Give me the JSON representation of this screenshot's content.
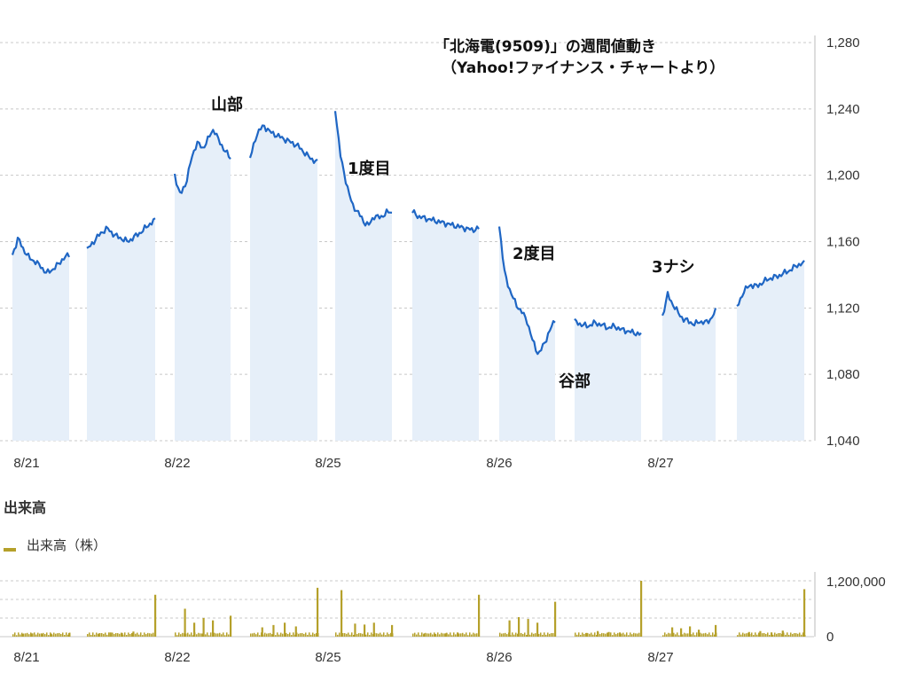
{
  "chart_data": [
    {
      "type": "line",
      "title": "「北海電(9509)」の週間値動き",
      "subtitle": "（Yahoo!ファイナンス・チャートより）",
      "x_labels": [
        "8/21",
        "8/22",
        "8/25",
        "8/26",
        "8/27"
      ],
      "y_ticks": [
        1040,
        1080,
        1120,
        1160,
        1200,
        1240,
        1280
      ],
      "y_tick_labels": [
        "1,040",
        "1,080",
        "1,120",
        "1,160",
        "1,200",
        "1,240",
        "1,280"
      ],
      "ylim": [
        1040,
        1280
      ],
      "grid": true,
      "colors": {
        "line": "#1f66c4",
        "fill": "#e6eff9",
        "grid": "#c8c8c8"
      },
      "sessions": [
        {
          "day": "8/21",
          "part": "am",
          "points": [
            1152,
            1162,
            1155,
            1150,
            1148,
            1145,
            1141,
            1143,
            1146,
            1150,
            1152
          ]
        },
        {
          "day": "8/21",
          "part": "pm",
          "points": [
            1155,
            1160,
            1165,
            1168,
            1164,
            1162,
            1160,
            1163,
            1166,
            1170,
            1173
          ]
        },
        {
          "day": "8/22",
          "part": "am",
          "points": [
            1200,
            1188,
            1195,
            1210,
            1220,
            1216,
            1222,
            1228,
            1220,
            1215,
            1210
          ]
        },
        {
          "day": "8/22",
          "part": "pm",
          "points": [
            1210,
            1225,
            1230,
            1226,
            1224,
            1222,
            1220,
            1218,
            1214,
            1210,
            1208
          ]
        },
        {
          "day": "8/25",
          "part": "am",
          "points": [
            1240,
            1210,
            1195,
            1182,
            1178,
            1172,
            1170,
            1176,
            1174,
            1178,
            1177
          ]
        },
        {
          "day": "8/25",
          "part": "pm",
          "points": [
            1178,
            1175,
            1174,
            1173,
            1172,
            1171,
            1170,
            1169,
            1168,
            1167,
            1168
          ]
        },
        {
          "day": "8/26",
          "part": "am",
          "points": [
            1170,
            1140,
            1130,
            1122,
            1118,
            1112,
            1100,
            1092,
            1098,
            1106,
            1113
          ]
        },
        {
          "day": "8/26",
          "part": "pm",
          "points": [
            1112,
            1110,
            1109,
            1111,
            1110,
            1108,
            1109,
            1107,
            1106,
            1105,
            1104
          ]
        },
        {
          "day": "8/27",
          "part": "am",
          "points": [
            1115,
            1128,
            1122,
            1117,
            1113,
            1112,
            1110,
            1112,
            1111,
            1113,
            1118
          ]
        },
        {
          "day": "8/27",
          "part": "pm",
          "points": [
            1120,
            1130,
            1134,
            1133,
            1136,
            1138,
            1139,
            1141,
            1143,
            1146,
            1147
          ]
        }
      ],
      "annotations": [
        {
          "text": "山部",
          "value": 1228,
          "session": 2
        },
        {
          "text": "1度目",
          "value": 1240,
          "session": 4
        },
        {
          "text": "2度目",
          "value": 1170,
          "session": 6
        },
        {
          "text": "谷部",
          "value": 1092,
          "session": 6
        },
        {
          "text": "3ナシ",
          "value": 1128,
          "session": 8
        }
      ]
    },
    {
      "type": "bar",
      "title": "出来高",
      "legend": "出来高（株）",
      "x_labels": [
        "8/21",
        "8/22",
        "8/25",
        "8/26",
        "8/27"
      ],
      "y_tick_labels": [
        "0",
        "1,200,000"
      ],
      "ylim": [
        0,
        1200000
      ],
      "colors": {
        "bar": "#b5a02a"
      },
      "sessions_spikes": [
        [
          60000,
          70000,
          55000,
          65000,
          80000
        ],
        [
          70000,
          90000,
          80000,
          110000,
          900000
        ],
        [
          600000,
          300000,
          400000,
          350000,
          450000
        ],
        [
          200000,
          250000,
          300000,
          220000,
          1050000
        ],
        [
          1000000,
          280000,
          260000,
          300000,
          250000
        ],
        [
          70000,
          60000,
          80000,
          90000,
          900000
        ],
        [
          350000,
          420000,
          380000,
          300000,
          750000
        ],
        [
          80000,
          120000,
          100000,
          90000,
          1200000
        ],
        [
          200000,
          180000,
          220000,
          150000,
          250000
        ],
        [
          100000,
          120000,
          90000,
          130000,
          1020000
        ]
      ]
    }
  ]
}
